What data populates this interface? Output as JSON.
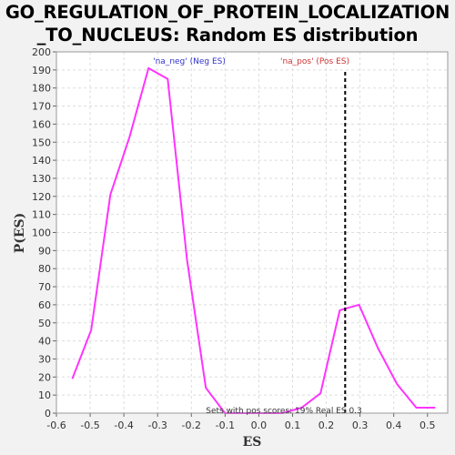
{
  "chart_data": {
    "type": "line",
    "title_lines": [
      "GO_REGULATION_OF_PROTEIN_LOCALIZATION",
      "_TO_NUCLEUS: Random ES distribution"
    ],
    "xlabel": "ES",
    "ylabel": "P(ES)",
    "xlim": [
      -0.6,
      0.56
    ],
    "ylim": [
      0,
      200
    ],
    "x_ticks": [
      -0.6,
      -0.5,
      -0.4,
      -0.3,
      -0.2,
      -0.1,
      0.0,
      0.1,
      0.2,
      0.3,
      0.4,
      0.5
    ],
    "x_tick_labels": [
      "-0.6",
      "-0.5",
      "-0.4",
      "-0.3",
      "-0.2",
      "-0.1",
      "0.0",
      "0.1",
      "0.2",
      "0.3",
      "0.4",
      "0.5"
    ],
    "y_ticks": [
      0,
      10,
      20,
      30,
      40,
      50,
      60,
      70,
      80,
      90,
      100,
      110,
      120,
      130,
      140,
      150,
      160,
      170,
      180,
      190,
      200
    ],
    "y_tick_labels": [
      "0",
      "10",
      "20",
      "30",
      "40",
      "50",
      "60",
      "70",
      "80",
      "90",
      "100",
      "110",
      "120",
      "130",
      "140",
      "150",
      "160",
      "170",
      "180",
      "190",
      "200"
    ],
    "grid": true,
    "series": [
      {
        "color": "#ff33ff",
        "x": [
          -0.553,
          -0.497,
          -0.44,
          -0.383,
          -0.327,
          -0.27,
          -0.213,
          -0.157,
          -0.1,
          -0.043,
          0.013,
          0.07,
          0.127,
          0.183,
          0.24,
          0.297,
          0.353,
          0.41,
          0.467,
          0.523
        ],
        "y": [
          19,
          46,
          121,
          153,
          191,
          185,
          85,
          14,
          0,
          0,
          0,
          0,
          3,
          11,
          57,
          60,
          36,
          16,
          3,
          3
        ]
      }
    ],
    "real_es": 0.3,
    "real_es_marker_x": 0.256,
    "real_es_line_color": "#000000",
    "annotations": {
      "neg_label": "'na_neg' (Neg ES)",
      "neg_color": "#3333cc",
      "pos_label": "'na_pos' (Pos ES)",
      "pos_color": "#cc3333",
      "bottom_text": "Sets with pos scores: 19%  Real ES 0.3"
    }
  }
}
